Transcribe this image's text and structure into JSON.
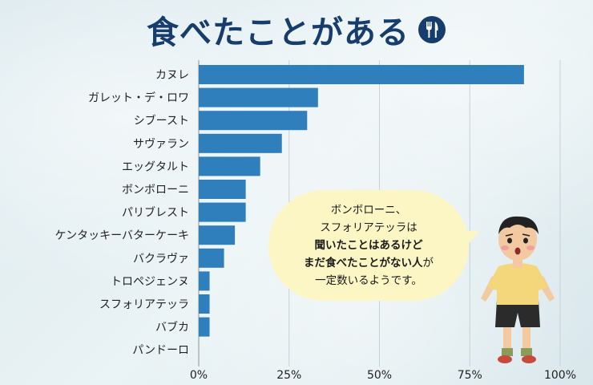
{
  "title": "食べたことがある",
  "icons": {
    "title_icon": "fork-knife-icon",
    "illustration": "surprised-child-illustration"
  },
  "colors": {
    "bar": "#2f7fbd",
    "title": "#163d6b",
    "bubble": "#fbf6c4"
  },
  "bubble": {
    "line1": "ボンボローニ、",
    "line2": "スフォリアテッラは",
    "line3": "聞いたことはあるけど",
    "line4_bold": "まだ食べたことがない人",
    "line4_rest": "が",
    "line5": "一定数いるようです。"
  },
  "chart_data": {
    "type": "bar",
    "orientation": "horizontal",
    "title": "食べたことがある",
    "xlabel": "",
    "ylabel": "",
    "categories": [
      "カヌレ",
      "ガレット・デ・ロワ",
      "シブースト",
      "サヴァラン",
      "エッグタルト",
      "ボンボローニ",
      "パリブレスト",
      "ケンタッキーバターケーキ",
      "バクラヴァ",
      "トロペジェンヌ",
      "スフォリアテッラ",
      "バブカ",
      "パンドーロ"
    ],
    "values": [
      90,
      33,
      30,
      23,
      17,
      13,
      13,
      10,
      7,
      3,
      3,
      3,
      0
    ],
    "xlim": [
      0,
      100
    ],
    "xticks": [
      "0%",
      "25%",
      "50%",
      "75%",
      "100%"
    ],
    "grid": true,
    "value_unit": "%"
  }
}
